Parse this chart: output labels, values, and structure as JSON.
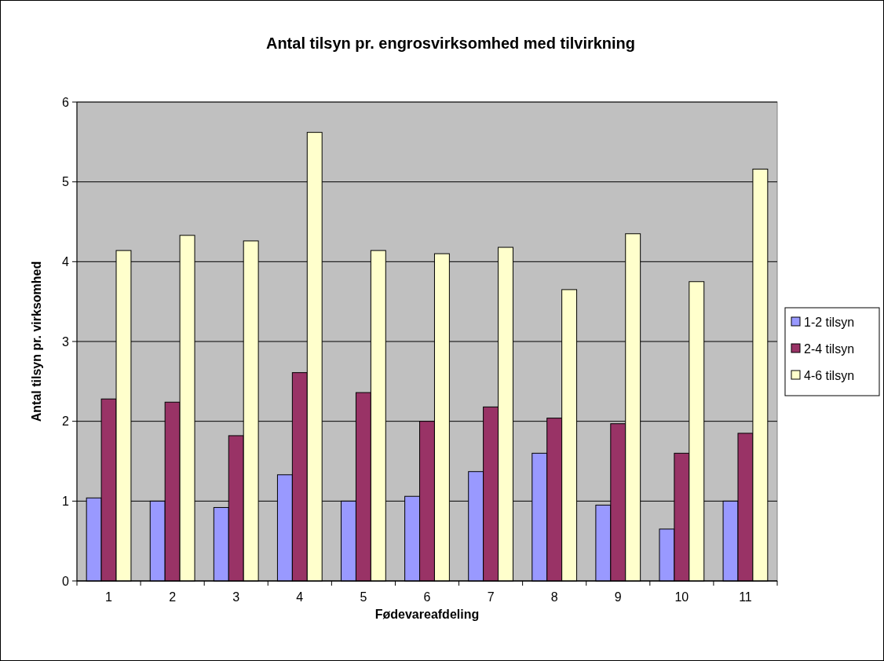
{
  "chart_data": {
    "type": "bar",
    "title": "Antal tilsyn pr. engrosvirksomhed med tilvirkning",
    "xlabel": "Fødevareafdeling",
    "ylabel": "Antal tilsyn pr. virksomhed",
    "categories": [
      "1",
      "2",
      "3",
      "4",
      "5",
      "6",
      "7",
      "8",
      "9",
      "10",
      "11"
    ],
    "series": [
      {
        "name": "1-2 tilsyn",
        "color": "#9999ff",
        "values": [
          1.04,
          1.0,
          0.92,
          1.33,
          1.0,
          1.06,
          1.37,
          1.6,
          0.95,
          0.65,
          1.0
        ]
      },
      {
        "name": "2-4 tilsyn",
        "color": "#993366",
        "values": [
          2.28,
          2.24,
          1.82,
          2.61,
          2.36,
          2.0,
          2.18,
          2.04,
          1.97,
          1.6,
          1.85
        ]
      },
      {
        "name": "4-6 tilsyn",
        "color": "#ffffcc",
        "values": [
          4.14,
          4.33,
          4.26,
          5.62,
          4.14,
          4.1,
          4.18,
          3.65,
          4.35,
          3.75,
          5.16
        ]
      }
    ],
    "ylim": [
      0,
      6
    ],
    "yticks": [
      0,
      1,
      2,
      3,
      4,
      5,
      6
    ],
    "grid": "y",
    "legend": "right"
  }
}
